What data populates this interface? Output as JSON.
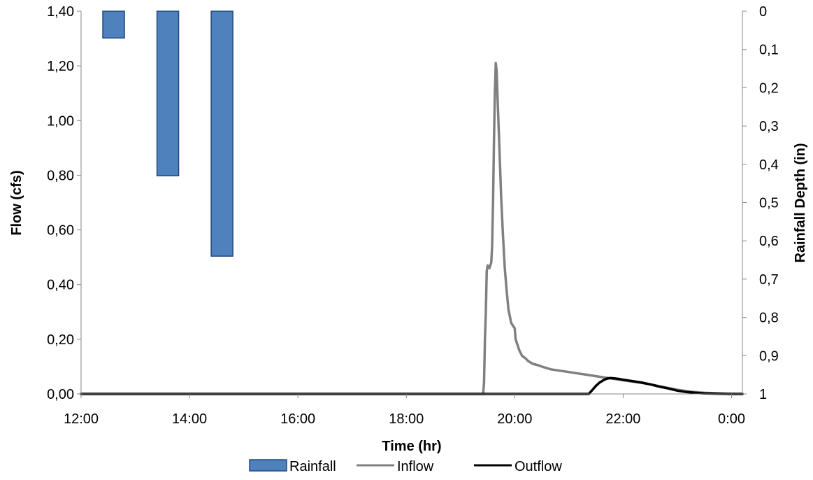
{
  "chart_data": {
    "type": "bar+line",
    "title": "",
    "xlabel": "Time (hr)",
    "ylabel_left": "Flow (cfs)",
    "ylabel_right": "Rainfall Depth (in)",
    "x_range_hours": [
      12.0,
      24.2
    ],
    "y_left_range": [
      0,
      1.4
    ],
    "y_right_range": [
      1,
      0
    ],
    "y_right_reversed": true,
    "x_ticks": [
      "12:00",
      "14:00",
      "16:00",
      "18:00",
      "20:00",
      "22:00",
      "0:00"
    ],
    "y_left_ticks": [
      "0,00",
      "0,20",
      "0,40",
      "0,60",
      "0,80",
      "1,00",
      "1,20",
      "1,40"
    ],
    "y_right_ticks": [
      "0",
      "0,1",
      "0,2",
      "0,3",
      "0,4",
      "0,5",
      "0,6",
      "0,7",
      "0,8",
      "0,9",
      "1"
    ],
    "legend_position": "bottom",
    "rainfall": {
      "name": "Rainfall",
      "color": "#4f81bd",
      "border": "#1f497d",
      "bars": [
        {
          "start": "12:24",
          "end": "12:48",
          "depth": 0.07
        },
        {
          "start": "13:24",
          "end": "13:48",
          "depth": 0.43
        },
        {
          "start": "14:24",
          "end": "14:48",
          "depth": 0.64
        }
      ]
    },
    "series": [
      {
        "name": "Inflow",
        "color": "#808080",
        "points": [
          [
            "12:00",
            0.0
          ],
          [
            "19:25",
            0.0
          ],
          [
            "19:26",
            0.04
          ],
          [
            "19:27",
            0.2
          ],
          [
            "19:28",
            0.3
          ],
          [
            "19:29",
            0.45
          ],
          [
            "19:30",
            0.47
          ],
          [
            "19:32",
            0.46
          ],
          [
            "19:34",
            0.48
          ],
          [
            "19:35",
            0.54
          ],
          [
            "19:36",
            0.7
          ],
          [
            "19:37",
            0.92
          ],
          [
            "19:38",
            1.1
          ],
          [
            "19:39",
            1.21
          ],
          [
            "19:40",
            1.18
          ],
          [
            "19:41",
            1.08
          ],
          [
            "19:43",
            0.9
          ],
          [
            "19:45",
            0.72
          ],
          [
            "19:47",
            0.58
          ],
          [
            "19:49",
            0.46
          ],
          [
            "19:51",
            0.38
          ],
          [
            "19:53",
            0.31
          ],
          [
            "19:56",
            0.26
          ],
          [
            "19:58",
            0.25
          ],
          [
            "20:00",
            0.24
          ],
          [
            "20:01",
            0.2
          ],
          [
            "20:03",
            0.18
          ],
          [
            "20:05",
            0.16
          ],
          [
            "20:08",
            0.14
          ],
          [
            "20:12",
            0.13
          ],
          [
            "20:15",
            0.12
          ],
          [
            "20:20",
            0.11
          ],
          [
            "20:26",
            0.105
          ],
          [
            "20:30",
            0.1
          ],
          [
            "20:40",
            0.09
          ],
          [
            "20:50",
            0.085
          ],
          [
            "21:00",
            0.08
          ],
          [
            "21:10",
            0.075
          ],
          [
            "21:20",
            0.07
          ],
          [
            "21:30",
            0.065
          ],
          [
            "21:40",
            0.06
          ],
          [
            "21:50",
            0.055
          ],
          [
            "22:00",
            0.05
          ],
          [
            "22:15",
            0.043
          ],
          [
            "22:30",
            0.035
          ],
          [
            "22:45",
            0.025
          ],
          [
            "23:00",
            0.015
          ],
          [
            "23:15",
            0.008
          ],
          [
            "23:30",
            0.004
          ],
          [
            "23:45",
            0.002
          ],
          [
            "0:00",
            0.0
          ],
          [
            "0:12",
            0.0
          ]
        ]
      },
      {
        "name": "Outflow",
        "color": "#000000",
        "points": [
          [
            "12:00",
            0.0
          ],
          [
            "21:22",
            0.0
          ],
          [
            "21:26",
            0.015
          ],
          [
            "21:30",
            0.03
          ],
          [
            "21:34",
            0.042
          ],
          [
            "21:38",
            0.05
          ],
          [
            "21:42",
            0.056
          ],
          [
            "21:46",
            0.058
          ],
          [
            "21:50",
            0.057
          ],
          [
            "21:55",
            0.055
          ],
          [
            "22:00",
            0.052
          ],
          [
            "22:10",
            0.047
          ],
          [
            "22:20",
            0.042
          ],
          [
            "22:30",
            0.035
          ],
          [
            "22:40",
            0.027
          ],
          [
            "22:50",
            0.02
          ],
          [
            "23:00",
            0.012
          ],
          [
            "23:10",
            0.007
          ],
          [
            "23:20",
            0.004
          ],
          [
            "23:30",
            0.002
          ],
          [
            "23:45",
            0.001
          ],
          [
            "0:00",
            0.0
          ],
          [
            "0:12",
            0.0
          ]
        ]
      }
    ]
  }
}
